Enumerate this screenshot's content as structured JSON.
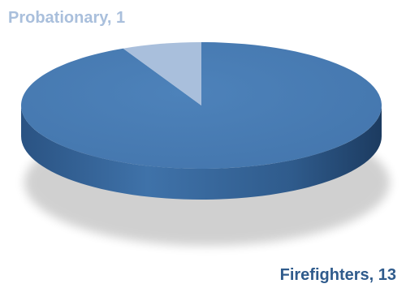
{
  "chart_data": {
    "type": "pie",
    "style": "3d",
    "title": "",
    "legend": "none",
    "slices": [
      {
        "label": "Firefighters",
        "value": 13,
        "color": "#4a7eb5"
      },
      {
        "label": "Probationary",
        "value": 1,
        "color": "#a9bfdc"
      }
    ],
    "data_labels": [
      {
        "text": "Probationary, 1",
        "color": "#a9bfdc"
      },
      {
        "text": "Firefighters, 13",
        "color": "#2f5b8c"
      }
    ]
  }
}
